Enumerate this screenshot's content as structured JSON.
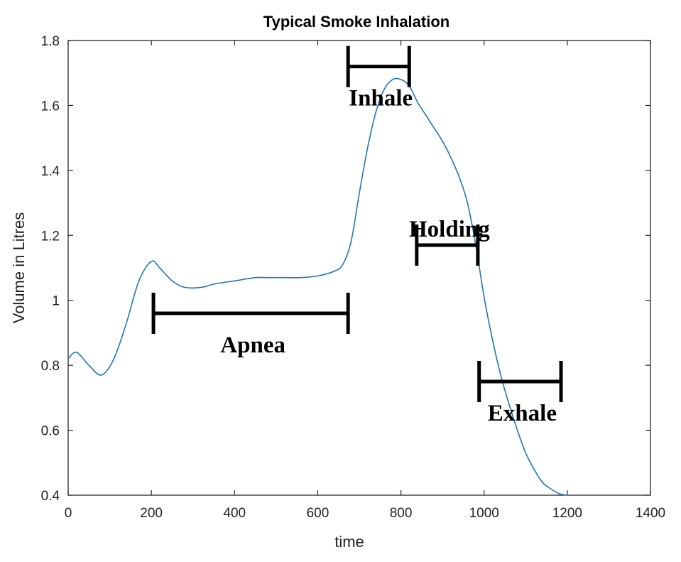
{
  "chart_data": {
    "type": "line",
    "title": "Typical Smoke Inhalation",
    "xlabel": "time",
    "ylabel": "Volume in Litres",
    "xlim": [
      0,
      1400
    ],
    "ylim": [
      0.4,
      1.8
    ],
    "xticks": [
      "0",
      "200",
      "400",
      "600",
      "800",
      "1000",
      "1200",
      "1400"
    ],
    "yticks": [
      "0.4",
      "0.6",
      "0.8",
      "1",
      "1.2",
      "1.4",
      "1.6",
      "1.8"
    ],
    "grid": false,
    "line_color": "#1f77b4",
    "series": [
      {
        "x": [
          0,
          20,
          50,
          80,
          110,
          140,
          170,
          200,
          220,
          250,
          280,
          320,
          350,
          400,
          450,
          480,
          520,
          560,
          600,
          640,
          660,
          680,
          700,
          720,
          740,
          760,
          780,
          800,
          820,
          840,
          860,
          880,
          900,
          920,
          940,
          960,
          980,
          1000,
          1020,
          1040,
          1060,
          1080,
          1100,
          1120,
          1140,
          1160,
          1180,
          1200
        ],
        "y": [
          0.82,
          0.84,
          0.8,
          0.77,
          0.82,
          0.93,
          1.06,
          1.12,
          1.1,
          1.06,
          1.04,
          1.04,
          1.05,
          1.06,
          1.07,
          1.07,
          1.07,
          1.07,
          1.075,
          1.09,
          1.11,
          1.18,
          1.33,
          1.47,
          1.58,
          1.65,
          1.68,
          1.68,
          1.66,
          1.61,
          1.57,
          1.53,
          1.49,
          1.44,
          1.38,
          1.3,
          1.17,
          1.01,
          0.88,
          0.77,
          0.68,
          0.6,
          0.53,
          0.48,
          0.44,
          0.42,
          0.405,
          0.4
        ]
      }
    ],
    "annotations": [
      {
        "label": "Apnea",
        "x_start": 205,
        "x_end": 673,
        "y": 0.96
      },
      {
        "label": "Inhale",
        "x_start": 673,
        "x_end": 820,
        "y": 1.72
      },
      {
        "label": "Holding",
        "x_start": 838,
        "x_end": 985,
        "y": 1.17
      },
      {
        "label": "Exhale",
        "x_start": 988,
        "x_end": 1185,
        "y": 0.75
      }
    ]
  }
}
